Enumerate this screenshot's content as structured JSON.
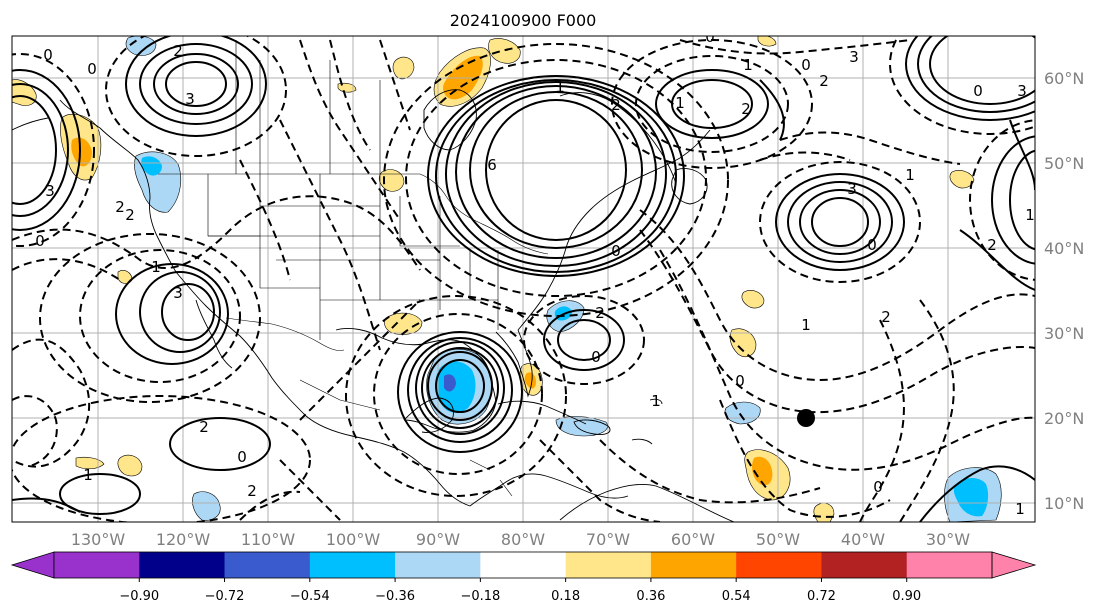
{
  "title": "2024100900 F000",
  "lon_labels": [
    "130°W",
    "120°W",
    "110°W",
    "100°W",
    "90°W",
    "80°W",
    "70°W",
    "60°W",
    "50°W",
    "40°W",
    "30°W"
  ],
  "lat_labels": [
    "60°N",
    "50°N",
    "40°N",
    "30°N",
    "20°N",
    "10°N"
  ],
  "colorbar": {
    "tick_labels": [
      "−0.90",
      "−0.72",
      "−0.54",
      "−0.36",
      "−0.18",
      "0.18",
      "0.36",
      "0.54",
      "0.72",
      "0.90"
    ],
    "colors": [
      "#9932cc",
      "#00008b",
      "#3a5bcd",
      "#00bfff",
      "#add8f5",
      "#ffffff",
      "#ffe68a",
      "#ffa500",
      "#ff4500",
      "#b22222",
      "#ff82ab",
      "#ff82ab"
    ]
  },
  "contour_labels": [
    "0",
    "2",
    "3",
    "0",
    "2",
    "3",
    "0",
    "1",
    "2",
    "3",
    "6",
    "0",
    "1",
    "2",
    "0",
    "1",
    "2",
    "3",
    "0",
    "1",
    "2",
    "3",
    "0",
    "1",
    "2",
    "3",
    "0",
    "1",
    "2",
    "0",
    "1",
    "2",
    "0",
    "1",
    "2",
    "0",
    "1",
    "2",
    "0",
    "1"
  ]
}
